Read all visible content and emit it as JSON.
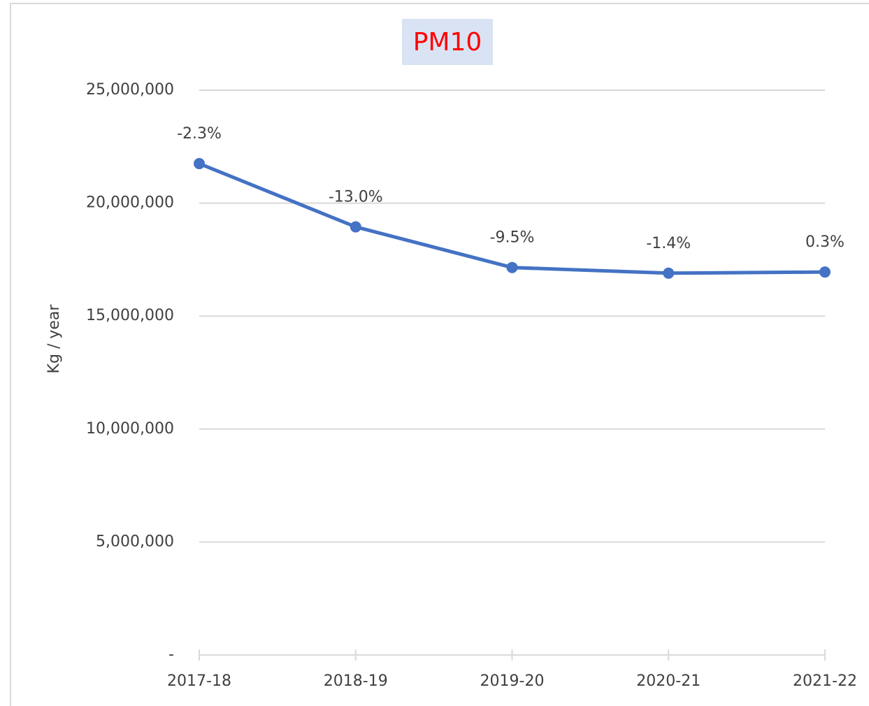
{
  "chart_data": {
    "type": "line",
    "title": "PM10",
    "y_label": "Kg / year",
    "categories": [
      "2017-18",
      "2018-19",
      "2019-20",
      "2020-21",
      "2021-22"
    ],
    "series": [
      {
        "name": "PM10",
        "color": "#4472c4",
        "values": [
          21750000,
          18950000,
          17150000,
          16900000,
          16950000
        ]
      }
    ],
    "point_labels": [
      "-2.3%",
      "-13.0%",
      "-9.5%",
      "-1.4%",
      "0.3%"
    ],
    "ylim": [
      0,
      25000000
    ],
    "yticks": [
      {
        "value": 0,
        "label": "-"
      },
      {
        "value": 5000000,
        "label": "5,000,000"
      },
      {
        "value": 10000000,
        "label": "10,000,000"
      },
      {
        "value": 15000000,
        "label": "15,000,000"
      },
      {
        "value": 20000000,
        "label": "20,000,000"
      },
      {
        "value": 25000000,
        "label": "25,000,000"
      }
    ],
    "grid": true
  }
}
